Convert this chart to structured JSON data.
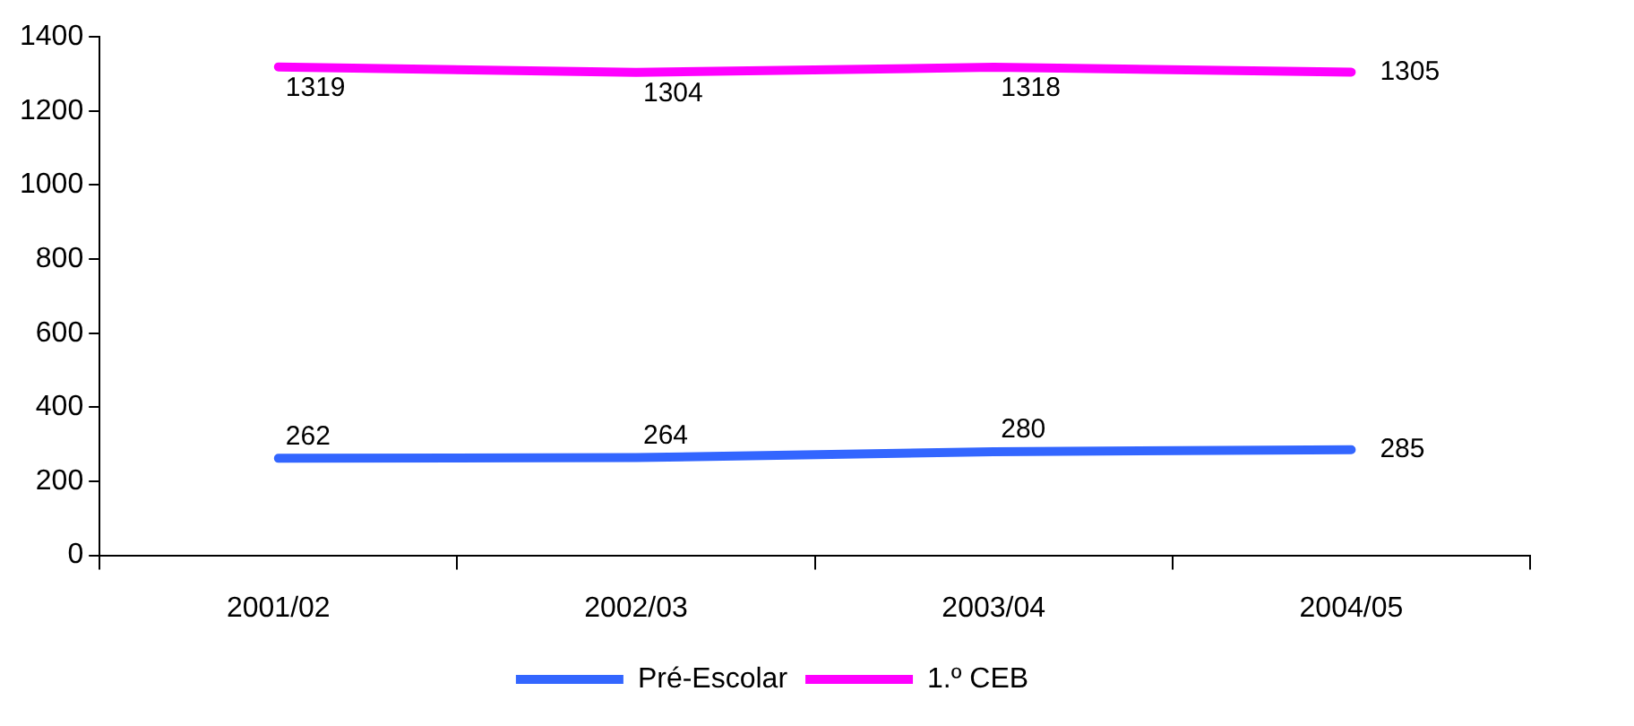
{
  "chart_data": {
    "type": "line",
    "categories": [
      "2001/02",
      "2002/03",
      "2003/04",
      "2004/05"
    ],
    "series": [
      {
        "name": "Pré-Escolar",
        "color": "#3366ff",
        "values": [
          262,
          264,
          280,
          285
        ]
      },
      {
        "name": "1.º CEB",
        "color": "#ff00ff",
        "values": [
          1319,
          1304,
          1318,
          1305
        ]
      }
    ],
    "ylim": [
      0,
      1400
    ],
    "yticks": [
      0,
      200,
      400,
      600,
      800,
      1000,
      1200,
      1400
    ],
    "grid": false,
    "legend": "bottom",
    "marker": "none",
    "line_style": "solid",
    "data_labels": true
  }
}
